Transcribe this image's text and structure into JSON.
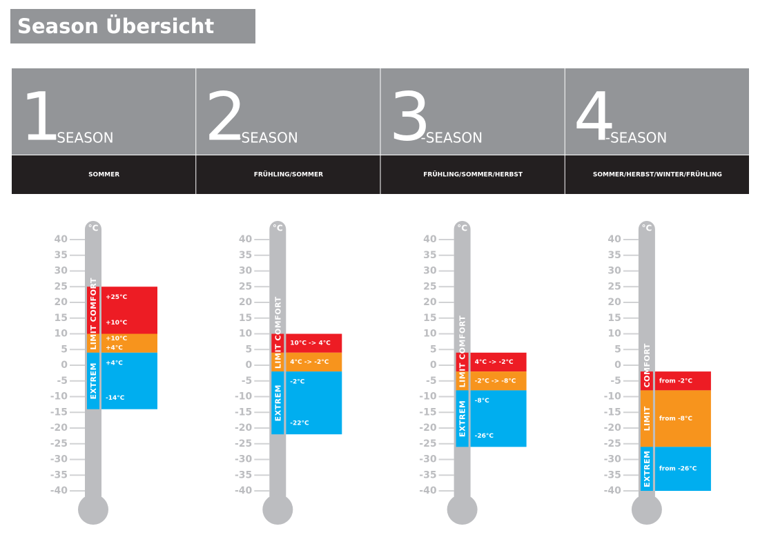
{
  "title": "Season Übersicht",
  "unit": "°C",
  "scale": {
    "ticks": [
      40,
      35,
      30,
      25,
      20,
      15,
      10,
      5,
      0,
      -5,
      -10,
      -15,
      -20,
      -25,
      -30,
      -35,
      -40
    ]
  },
  "columns": [
    {
      "number": "1",
      "suffix": "-SEASON",
      "seasons": "SOMMER",
      "tube_labels": [
        "LIMIT COMFORT",
        "EXTREM"
      ],
      "zones": [
        {
          "top": 25,
          "bottom": 10,
          "color": "#ed1c24",
          "labels": [
            "+25°C",
            "+10°C"
          ]
        },
        {
          "top": 10,
          "bottom": 4,
          "color": "#f7941d",
          "labels": [
            "+10°C",
            "+4°C"
          ]
        },
        {
          "top": 4,
          "bottom": -14,
          "color": "#00aeef",
          "labels": [
            "+4°C",
            "-14°C"
          ]
        }
      ]
    },
    {
      "number": "2",
      "suffix": "-SEASON",
      "seasons": "FRÜHLING/SOMMER",
      "tube_labels": [
        "LIMIT COMFORT",
        "EXTREM"
      ],
      "zones": [
        {
          "top": 10,
          "bottom": 4,
          "color": "#ed1c24",
          "labels": [
            "10°C -> 4°C"
          ]
        },
        {
          "top": 4,
          "bottom": -2,
          "color": "#f7941d",
          "labels": [
            "4°C -> -2°C"
          ]
        },
        {
          "top": -2,
          "bottom": -22,
          "color": "#00aeef",
          "labels": [
            "-2°C",
            "-22°C"
          ]
        }
      ]
    },
    {
      "number": "3",
      "suffix": "-SEASON",
      "seasons": "FRÜHLING/SOMMER/HERBST",
      "tube_labels": [
        "LIMIT COMFORT",
        "EXTREM"
      ],
      "zones": [
        {
          "top": 4,
          "bottom": -2,
          "color": "#ed1c24",
          "labels": [
            "4°C -> -2°C"
          ]
        },
        {
          "top": -2,
          "bottom": -8,
          "color": "#f7941d",
          "labels": [
            "-2°C -> -8°C"
          ]
        },
        {
          "top": -8,
          "bottom": -26,
          "color": "#00aeef",
          "labels": [
            "-8°C",
            "-26°C"
          ]
        }
      ]
    },
    {
      "number": "4",
      "suffix": "-SEASON",
      "seasons": "SOMMER/HERBST/WINTER/FRÜHLING",
      "tube_labels": [
        "COMFORT",
        "LIMIT",
        "EXTREM"
      ],
      "zones": [
        {
          "top": -2,
          "bottom": -8,
          "color": "#ed1c24",
          "labels": [
            "from -2°C"
          ]
        },
        {
          "top": -8,
          "bottom": -26,
          "color": "#f7941d",
          "labels": [
            "from -8°C"
          ]
        },
        {
          "top": -26,
          "bottom": -40,
          "color": "#00aeef",
          "labels": [
            "from -26°C"
          ]
        }
      ]
    }
  ]
}
